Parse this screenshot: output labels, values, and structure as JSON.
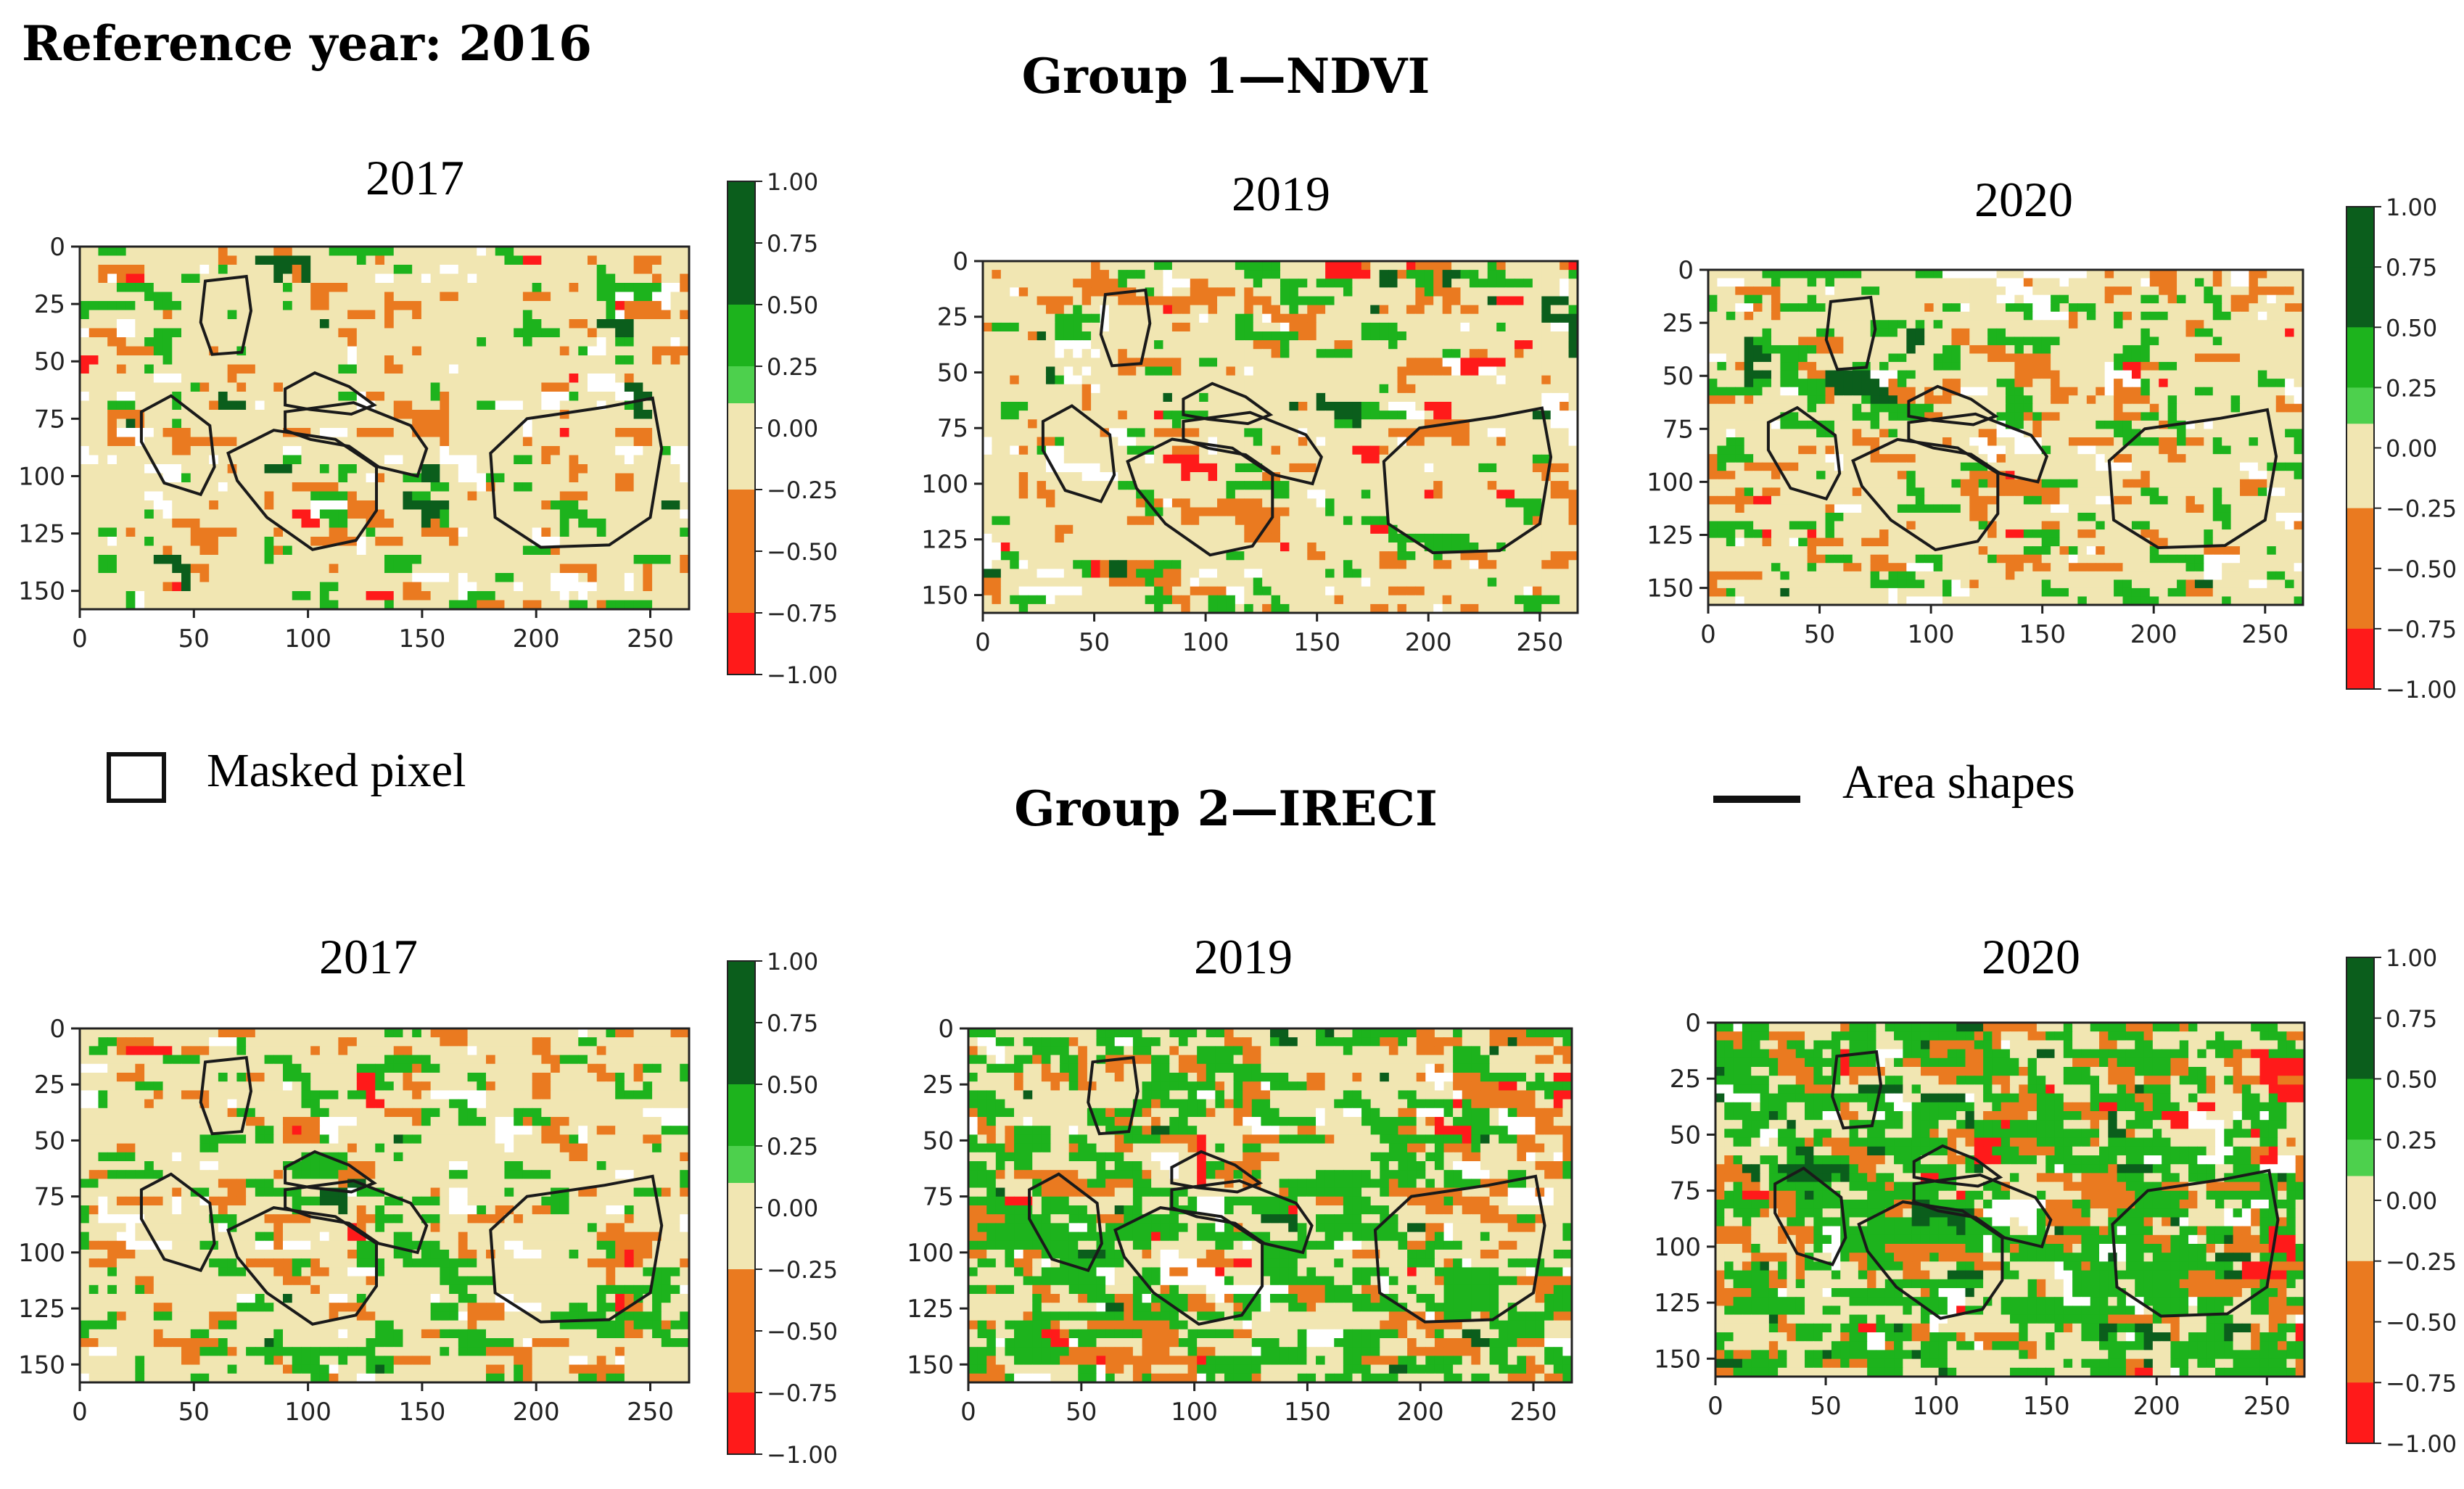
{
  "header": {
    "reference": "Reference year: 2016",
    "group1_title": "Group 1—NDVI",
    "group2_title": "Group 2—IRECI"
  },
  "legend": {
    "masked_label": "Masked pixel",
    "area_label": "Area shapes"
  },
  "colors": {
    "dark_green": "#0b5e1c",
    "green": "#1db31d",
    "light_green": "#4dd04d",
    "neutral": "#f1e6b2",
    "orange": "#ea7a20",
    "red": "#ff1a1a",
    "masked": "#ffffff",
    "outline": "#1a1a1a"
  },
  "chart_data": [
    {
      "type": "heatmap",
      "group": "Group 1—NDVI",
      "title": "2017",
      "x_ticks": [
        0,
        50,
        100,
        150,
        200,
        250
      ],
      "y_ticks": [
        0,
        25,
        50,
        75,
        100,
        125,
        150
      ],
      "xlim": [
        0,
        267
      ],
      "ylim": [
        158,
        0
      ],
      "colorbar": {
        "min": -1.0,
        "max": 1.0,
        "ticks": [
          "1.00",
          "0.75",
          "0.50",
          "0.25",
          "0.00",
          "−0.25",
          "−0.50",
          "−0.75",
          "−1.00"
        ]
      },
      "class_shares": {
        "pos_strong": 0.01,
        "pos": 0.07,
        "neutral": 0.77,
        "neg": 0.09,
        "neg_strong": 0.01,
        "masked": 0.05
      },
      "seed": 11
    },
    {
      "type": "heatmap",
      "group": "Group 1—NDVI",
      "title": "2019",
      "x_ticks": [
        0,
        50,
        100,
        150,
        200,
        250
      ],
      "y_ticks": [
        0,
        25,
        50,
        75,
        100,
        125,
        150
      ],
      "xlim": [
        0,
        267
      ],
      "ylim": [
        158,
        0
      ],
      "colorbar": null,
      "class_shares": {
        "pos_strong": 0.01,
        "pos": 0.08,
        "neutral": 0.73,
        "neg": 0.11,
        "neg_strong": 0.02,
        "masked": 0.05
      },
      "seed": 23
    },
    {
      "type": "heatmap",
      "group": "Group 1—NDVI",
      "title": "2020",
      "x_ticks": [
        0,
        50,
        100,
        150,
        200,
        250
      ],
      "y_ticks": [
        0,
        25,
        50,
        75,
        100,
        125,
        150
      ],
      "xlim": [
        0,
        267
      ],
      "ylim": [
        158,
        0
      ],
      "colorbar": {
        "min": -1.0,
        "max": 1.0,
        "ticks": [
          "1.00",
          "0.75",
          "0.50",
          "0.25",
          "0.00",
          "−0.25",
          "−0.50",
          "−0.75",
          "−1.00"
        ]
      },
      "class_shares": {
        "pos_strong": 0.01,
        "pos": 0.15,
        "neutral": 0.66,
        "neg": 0.12,
        "neg_strong": 0.01,
        "masked": 0.05
      },
      "seed": 37
    },
    {
      "type": "heatmap",
      "group": "Group 2—IRECI",
      "title": "2017",
      "x_ticks": [
        0,
        50,
        100,
        150,
        200,
        250
      ],
      "y_ticks": [
        0,
        25,
        50,
        75,
        100,
        125,
        150
      ],
      "xlim": [
        0,
        267
      ],
      "ylim": [
        158,
        0
      ],
      "colorbar": {
        "min": -1.0,
        "max": 1.0,
        "ticks": [
          "1.00",
          "0.75",
          "0.50",
          "0.25",
          "0.00",
          "−0.25",
          "−0.50",
          "−0.75",
          "−1.00"
        ]
      },
      "class_shares": {
        "pos_strong": 0.01,
        "pos": 0.18,
        "neutral": 0.62,
        "neg": 0.13,
        "neg_strong": 0.01,
        "masked": 0.05
      },
      "seed": 53
    },
    {
      "type": "heatmap",
      "group": "Group 2—IRECI",
      "title": "2019",
      "x_ticks": [
        0,
        50,
        100,
        150,
        200,
        250
      ],
      "y_ticks": [
        0,
        25,
        50,
        75,
        100,
        125,
        150
      ],
      "xlim": [
        0,
        267
      ],
      "ylim": [
        158,
        0
      ],
      "colorbar": null,
      "class_shares": {
        "pos_strong": 0.02,
        "pos": 0.32,
        "neutral": 0.44,
        "neg": 0.15,
        "neg_strong": 0.02,
        "masked": 0.05
      },
      "seed": 71
    },
    {
      "type": "heatmap",
      "group": "Group 2—IRECI",
      "title": "2020",
      "x_ticks": [
        0,
        50,
        100,
        150,
        200,
        250
      ],
      "y_ticks": [
        0,
        25,
        50,
        75,
        100,
        125,
        150
      ],
      "xlim": [
        0,
        267
      ],
      "ylim": [
        158,
        0
      ],
      "colorbar": {
        "min": -1.0,
        "max": 1.0,
        "ticks": [
          "1.00",
          "0.75",
          "0.50",
          "0.25",
          "0.00",
          "−0.25",
          "−0.50",
          "−0.75",
          "−1.00"
        ]
      },
      "class_shares": {
        "pos_strong": 0.03,
        "pos": 0.48,
        "neutral": 0.28,
        "neg": 0.14,
        "neg_strong": 0.02,
        "masked": 0.05
      },
      "seed": 89
    }
  ]
}
